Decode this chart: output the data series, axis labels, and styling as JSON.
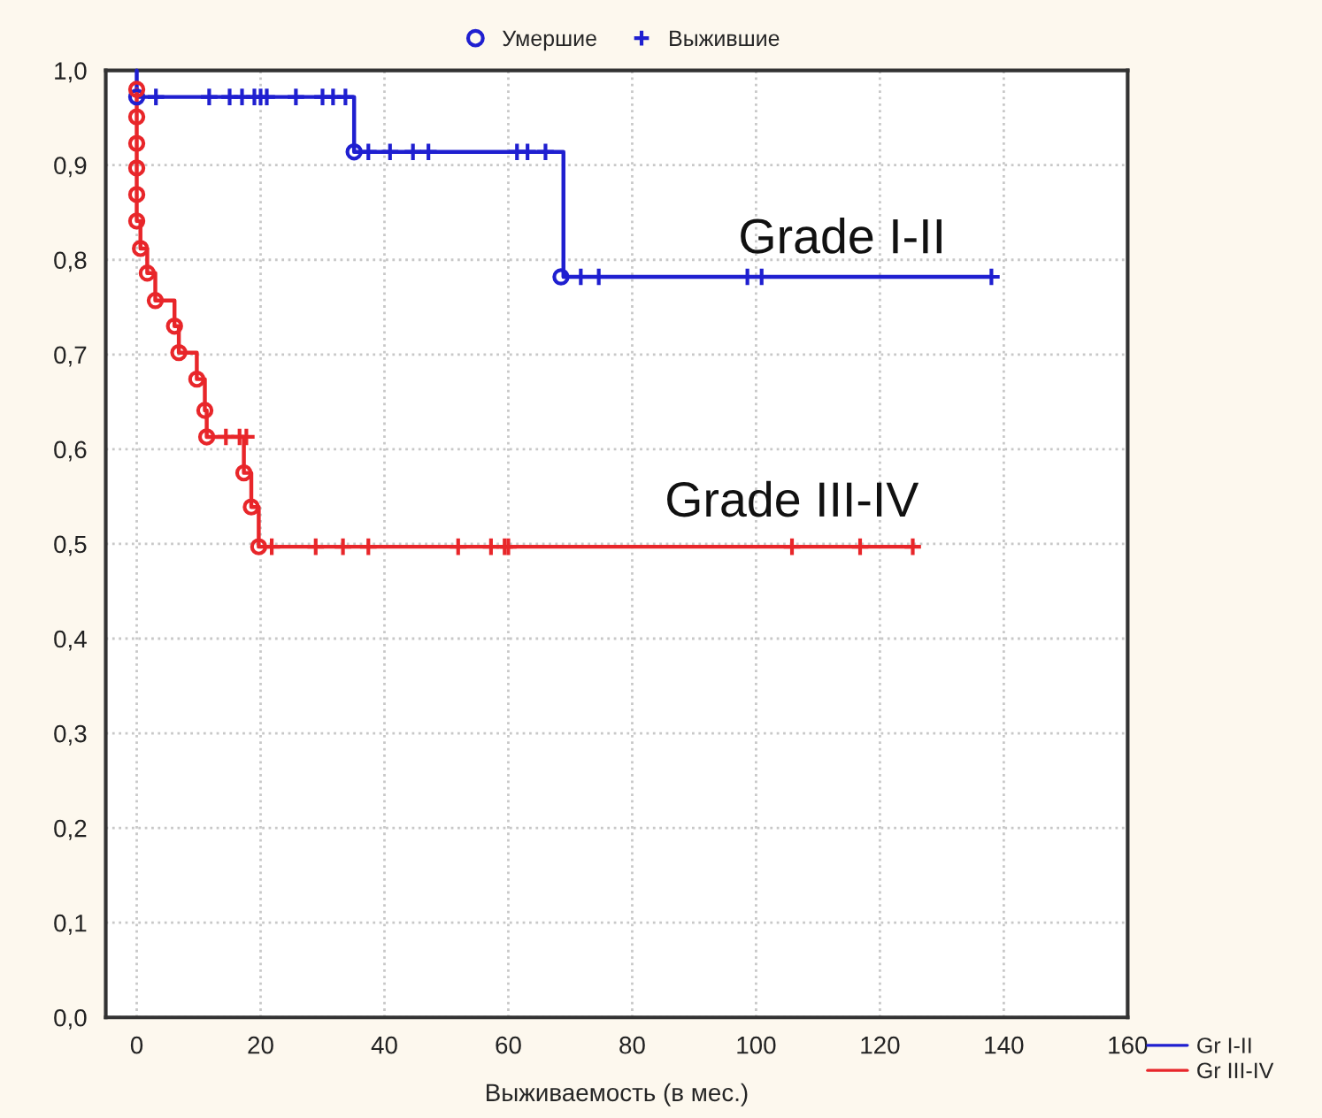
{
  "chart_data": {
    "type": "step",
    "xlabel": "Выживаемость (в мес.)",
    "xlim": [
      -5,
      160
    ],
    "xticks": [
      0,
      20,
      40,
      60,
      80,
      100,
      120,
      140,
      160
    ],
    "ylim": [
      0,
      1
    ],
    "yticks": [
      {
        "value": 0,
        "label": "0,0"
      },
      {
        "value": 0.1,
        "label": "0,1"
      },
      {
        "value": 0.2,
        "label": "0,2"
      },
      {
        "value": 0.3,
        "label": "0,3"
      },
      {
        "value": 0.4,
        "label": "0,4"
      },
      {
        "value": 0.5,
        "label": "0,5"
      },
      {
        "value": 0.6,
        "label": "0,6"
      },
      {
        "value": 0.7,
        "label": "0,7"
      },
      {
        "value": 0.8,
        "label": "0,8"
      },
      {
        "value": 0.9,
        "label": "0,9"
      },
      {
        "value": 1,
        "label": "1,0"
      }
    ],
    "grid": true,
    "legend": "bottom right",
    "annotations": [
      "Grade I-II",
      "Grade III-IV"
    ],
    "series": [
      {
        "name": "Gr I-II",
        "color": "#1f1fd0",
        "x": [
          0,
          0,
          35.1,
          68.9,
          138
        ],
        "values": [
          1.0,
          0.972,
          0.914,
          0.782,
          0.782
        ]
      },
      {
        "name": "Gr III-IV",
        "color": "#e8262a",
        "x": [
          0,
          0,
          0,
          0,
          0,
          0,
          0.6,
          1.7,
          3.0,
          6.1,
          6.8,
          9.7,
          11.0,
          11.3,
          17.3,
          18.5,
          19.7,
          125.3
        ],
        "values": [
          0.98,
          0.951,
          0.923,
          0.897,
          0.869,
          0.841,
          0.812,
          0.786,
          0.757,
          0.73,
          0.702,
          0.674,
          0.641,
          0.613,
          0.575,
          0.539,
          0.497,
          0.497
        ]
      },
      {
        "name": "Умершие",
        "type": "scatter",
        "marker": "circle",
        "color": "#1f1fd0",
        "x": [
          0,
          35.1,
          68.5
        ],
        "values": [
          0.972,
          0.914,
          0.782
        ]
      },
      {
        "name": "Выжившие",
        "type": "scatter",
        "marker": "cross",
        "color": "#1f1fd0",
        "x": [
          3.1,
          11.7,
          15,
          17,
          19,
          20,
          21,
          25.7,
          30,
          31.7,
          33.7,
          37.4,
          40.9,
          44.6,
          47.1,
          61.4,
          63.1,
          66,
          71.7,
          74.6,
          98.6,
          100.9,
          138
        ],
        "values": [
          0.972,
          0.972,
          0.972,
          0.972,
          0.972,
          0.972,
          0.972,
          0.972,
          0.972,
          0.972,
          0.972,
          0.914,
          0.914,
          0.914,
          0.914,
          0.914,
          0.914,
          0.914,
          0.782,
          0.782,
          0.782,
          0.782,
          0.782
        ]
      },
      {
        "type": "scatter",
        "marker": "circle",
        "color": "#e8262a",
        "x": [
          0,
          0,
          0,
          0,
          0,
          0,
          0.6,
          1.7,
          3.0,
          6.1,
          6.8,
          9.7,
          11.0,
          11.3,
          17.3,
          18.5,
          19.7
        ],
        "values": [
          0.98,
          0.951,
          0.923,
          0.897,
          0.869,
          0.841,
          0.812,
          0.786,
          0.757,
          0.73,
          0.702,
          0.674,
          0.641,
          0.613,
          0.575,
          0.539,
          0.497
        ]
      },
      {
        "type": "scatter",
        "marker": "cross",
        "color": "#e8262a",
        "x": [
          14.4,
          16.6,
          17.7,
          21.8,
          28.9,
          33.3,
          37.4,
          51.9,
          57.2,
          59.4,
          60.0,
          105.8,
          116.8,
          125.3
        ],
        "values": [
          0.613,
          0.613,
          0.613,
          0.497,
          0.497,
          0.497,
          0.497,
          0.497,
          0.497,
          0.497,
          0.497,
          0.497,
          0.497,
          0.497
        ]
      }
    ]
  }
}
